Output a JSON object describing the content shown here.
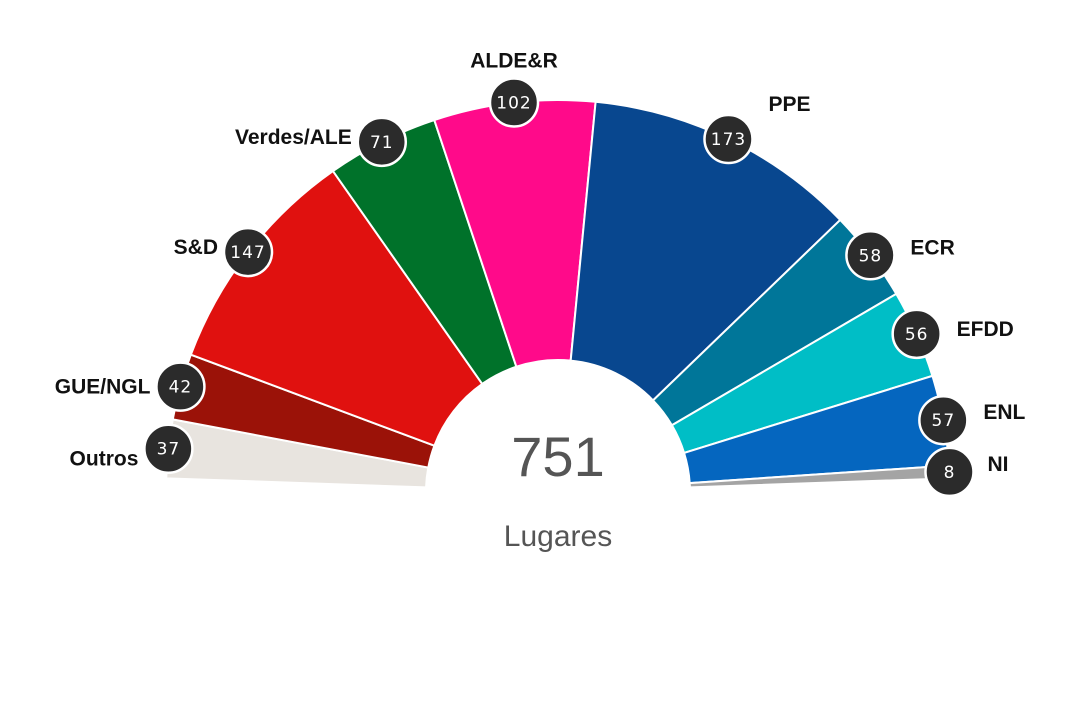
{
  "chart_data": {
    "type": "pie",
    "style": "semicircle-donut",
    "total": "751",
    "total_label": "Lugares",
    "series": [
      {
        "name": "Outros",
        "value": 37,
        "color": "#e8e4df"
      },
      {
        "name": "GUE/NGL",
        "value": 42,
        "color": "#9b1208"
      },
      {
        "name": "S&D",
        "value": 147,
        "color": "#e0110f"
      },
      {
        "name": "Verdes/ALE",
        "value": 71,
        "color": "#00722a"
      },
      {
        "name": "ALDE&R",
        "value": 102,
        "color": "#ff0a8a"
      },
      {
        "name": "PPE",
        "value": 173,
        "color": "#08478f"
      },
      {
        "name": "ECR",
        "value": 58,
        "color": "#007699"
      },
      {
        "name": "EFDD",
        "value": 56,
        "color": "#00bec6"
      },
      {
        "name": "ENL",
        "value": 57,
        "color": "#0566bf"
      },
      {
        "name": "NI",
        "value": 8,
        "color": "#a4a4a4"
      }
    ]
  }
}
